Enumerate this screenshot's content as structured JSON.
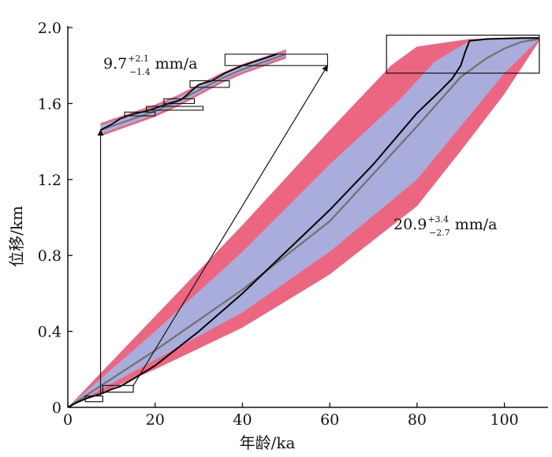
{
  "chart_data": {
    "type": "line",
    "xlabel": "年龄/ka",
    "ylabel": "位移/km",
    "xlim": [
      0,
      110
    ],
    "ylim": [
      0,
      2.0
    ],
    "x_ticks": [
      "0",
      "20",
      "40",
      "60",
      "80",
      "100"
    ],
    "y_ticks": [
      "0",
      "0.4",
      "0.8",
      "1.2",
      "1.6",
      "2.0"
    ],
    "colors": {
      "outer_band": "#ec6682",
      "inner_band": "#a9addb",
      "line": "#000000",
      "fit_line": "#707070"
    },
    "series": [
      {
        "x": [
          0,
          2,
          4,
          6,
          8,
          10,
          12,
          15,
          20,
          30,
          40,
          50,
          60,
          70,
          80,
          85,
          88,
          90,
          91,
          92,
          96,
          104,
          108
        ],
        "y": [
          0,
          0.025,
          0.045,
          0.06,
          0.075,
          0.095,
          0.11,
          0.15,
          0.22,
          0.4,
          0.6,
          0.82,
          1.04,
          1.28,
          1.55,
          1.66,
          1.73,
          1.8,
          1.87,
          1.93,
          1.94,
          1.945,
          1.945
        ]
      }
    ],
    "fit_curve": {
      "x": [
        0,
        20,
        40,
        60,
        80,
        90,
        96,
        100,
        104,
        108
      ],
      "y": [
        0,
        0.3,
        0.62,
        0.98,
        1.48,
        1.74,
        1.84,
        1.89,
        1.925,
        1.94
      ]
    },
    "outer_band": {
      "upper": {
        "x": [
          0,
          20,
          40,
          60,
          74,
          80,
          92,
          108
        ],
        "y": [
          0,
          0.48,
          0.96,
          1.46,
          1.8,
          1.9,
          1.94,
          1.95
        ]
      },
      "lower": {
        "x": [
          0,
          20,
          40,
          60,
          80,
          90,
          100,
          108
        ],
        "y": [
          0,
          0.2,
          0.42,
          0.7,
          1.06,
          1.35,
          1.65,
          1.93
        ]
      }
    },
    "inner_band": {
      "upper": {
        "x": [
          0,
          20,
          40,
          60,
          76,
          84,
          92,
          108
        ],
        "y": [
          0,
          0.4,
          0.82,
          1.28,
          1.62,
          1.82,
          1.93,
          1.95
        ]
      },
      "lower": {
        "x": [
          0,
          20,
          40,
          60,
          80,
          90,
          100,
          108
        ],
        "y": [
          0,
          0.25,
          0.5,
          0.82,
          1.2,
          1.48,
          1.76,
          1.94
        ]
      }
    },
    "boxes": [
      {
        "x": [
          4,
          8
        ],
        "y": [
          0.03,
          0.06
        ]
      },
      {
        "x": [
          8,
          15
        ],
        "y": [
          0.08,
          0.115
        ]
      },
      {
        "x": [
          73,
          108
        ],
        "y": [
          1.76,
          1.96
        ]
      }
    ],
    "arrows": [
      {
        "from": [
          7.5,
          0.06
        ],
        "to": [
          7.5,
          1.46
        ]
      },
      {
        "from": [
          15,
          0.115
        ],
        "to": [
          59.5,
          1.8
        ]
      }
    ],
    "inset": {
      "x": [
        7.5,
        10,
        12,
        15,
        18,
        20,
        23,
        26,
        28,
        30,
        33,
        36,
        40,
        44,
        48
      ],
      "y": [
        1.46,
        1.49,
        1.52,
        1.545,
        1.56,
        1.575,
        1.6,
        1.62,
        1.66,
        1.7,
        1.72,
        1.76,
        1.8,
        1.83,
        1.86
      ],
      "fit": {
        "x": [
          7.5,
          15,
          20,
          25,
          30,
          35,
          40,
          45,
          50
        ],
        "y": [
          1.46,
          1.52,
          1.56,
          1.61,
          1.67,
          1.73,
          1.78,
          1.82,
          1.86
        ]
      },
      "boxes": [
        {
          "x": [
            13,
            20
          ],
          "y": [
            1.535,
            1.555
          ]
        },
        {
          "x": [
            18,
            31
          ],
          "y": [
            1.565,
            1.585
          ]
        },
        {
          "x": [
            22,
            29
          ],
          "y": [
            1.6,
            1.625
          ]
        },
        {
          "x": [
            28,
            37
          ],
          "y": [
            1.685,
            1.72
          ]
        },
        {
          "x": [
            36,
            59.5
          ],
          "y": [
            1.8,
            1.86
          ]
        }
      ],
      "annotation": {
        "value": "9.7",
        "plus": "+2.1",
        "minus": "−1.4",
        "unit": "mm/a"
      }
    },
    "annotation": {
      "value": "20.9",
      "plus": "+3.4",
      "minus": "−2.7",
      "unit": "mm/a"
    }
  }
}
